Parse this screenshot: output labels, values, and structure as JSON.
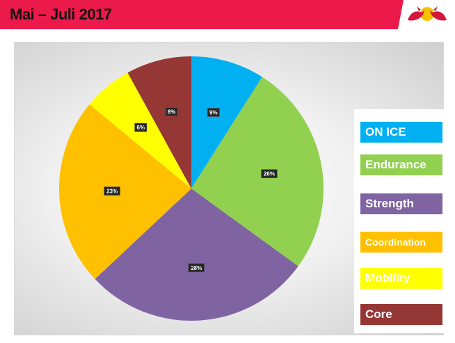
{
  "header": {
    "title": "Mai – Juli 2017",
    "band_color": "#ec1a4b"
  },
  "logo": {
    "icon": "red-bull-logo"
  },
  "chart_data": {
    "type": "pie",
    "categories": [
      "ON ICE",
      "Endurance",
      "Strength",
      "Coordination",
      "Mobility",
      "Core"
    ],
    "values": [
      9,
      26,
      28,
      23,
      6,
      8
    ],
    "labels": [
      "9%",
      "26%",
      "28%",
      "23%",
      "6%",
      "8%"
    ],
    "colors": [
      "#00b0f0",
      "#92d050",
      "#8064a2",
      "#ffc000",
      "#ffff00",
      "#953735"
    ],
    "unit": "%",
    "legend_position": "right"
  }
}
